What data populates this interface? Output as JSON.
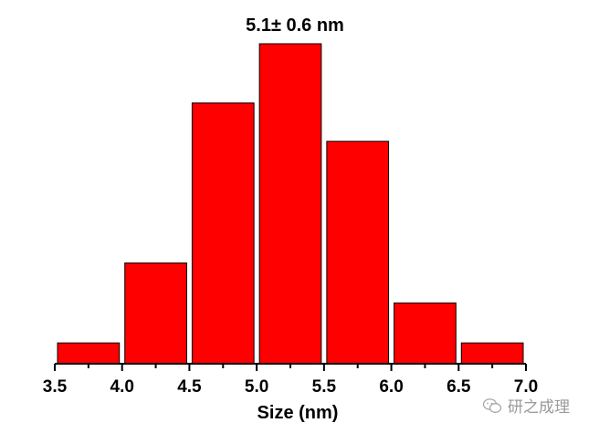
{
  "chart_data": {
    "type": "bar",
    "title": "5.1± 0.6 nm",
    "xlabel": "Size (nm)",
    "ylabel": "",
    "x_ticks": [
      "3.5",
      "4.0",
      "4.5",
      "5.0",
      "5.5",
      "6.0",
      "6.5",
      "7.0"
    ],
    "xlim": [
      3.5,
      7.0
    ],
    "ylim": [
      0,
      100
    ],
    "bin_width": 0.5,
    "bins": [
      {
        "x_start": 3.5,
        "x_end": 4.0,
        "value": 6.5
      },
      {
        "x_start": 4.0,
        "x_end": 4.5,
        "value": 31.5
      },
      {
        "x_start": 4.5,
        "x_end": 5.0,
        "value": 81.5
      },
      {
        "x_start": 5.0,
        "x_end": 5.5,
        "value": 100
      },
      {
        "x_start": 5.5,
        "x_end": 6.0,
        "value": 69.5
      },
      {
        "x_start": 6.0,
        "x_end": 6.5,
        "value": 19
      },
      {
        "x_start": 6.5,
        "x_end": 7.0,
        "value": 6.5
      }
    ],
    "bar_color": "#ff0000",
    "bar_edge_color": "#000000",
    "grid": false,
    "legend": "none"
  },
  "watermark": {
    "text": "研之成理",
    "icon": "wechat-icon"
  }
}
